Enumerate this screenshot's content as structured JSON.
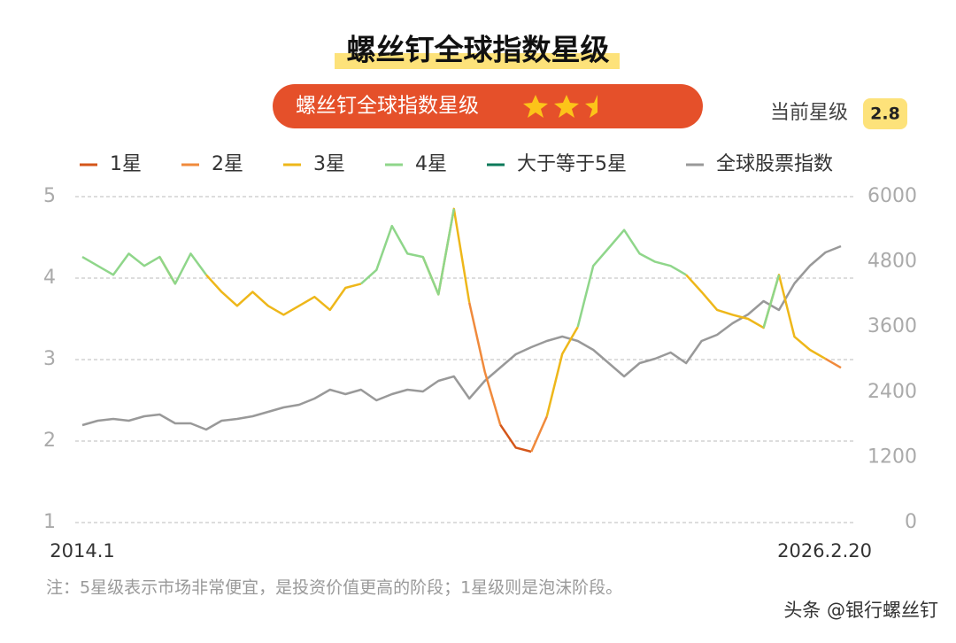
{
  "chart_data": {
    "type": "line",
    "title": "螺丝钉全球指数星级",
    "subtitle": "螺丝钉全球指数星级",
    "rating_label": "当前星级",
    "rating": 2.8,
    "note": "注：5星级表示市场非常便宜，是投资价值更高的阶段；1星级则是泡沫阶段。",
    "watermark": "头条 @银行螺丝钉",
    "categories": [
      "2014.1",
      null,
      null,
      null,
      null,
      null,
      null,
      null,
      null,
      null,
      null,
      null,
      null,
      null,
      null,
      null,
      null,
      null,
      null,
      null,
      null,
      null,
      null,
      null,
      null,
      null,
      null,
      null,
      null,
      null,
      null,
      null,
      null,
      null,
      null,
      null,
      null,
      null,
      null,
      null,
      null,
      null,
      null,
      null,
      null,
      null,
      null,
      null,
      null,
      "2026.2.20"
    ],
    "ylim": [
      1,
      5
    ],
    "yticks": [
      1,
      2,
      3,
      4,
      5
    ],
    "y2lim": [
      0,
      6000
    ],
    "y2ticks": [
      0,
      1200,
      2400,
      3600,
      4800,
      6000
    ],
    "grid": true,
    "series": [
      {
        "name": "1星",
        "color": "#d4561a",
        "values": [
          null,
          null,
          null,
          null,
          null,
          null,
          null,
          null,
          null,
          null,
          null,
          null,
          null,
          null,
          null,
          null,
          null,
          null,
          null,
          null,
          null,
          null,
          null,
          null,
          null,
          null,
          null,
          2.2,
          1.92,
          1.87,
          null,
          null,
          null,
          null,
          null,
          null,
          null,
          null,
          null,
          null,
          null,
          null,
          null,
          null,
          null,
          null,
          null,
          null,
          null,
          null
        ]
      },
      {
        "name": "2星",
        "color": "#f08a3c",
        "values": [
          null,
          null,
          null,
          null,
          null,
          null,
          null,
          null,
          null,
          null,
          null,
          null,
          null,
          null,
          null,
          null,
          null,
          null,
          null,
          null,
          null,
          null,
          null,
          null,
          null,
          3.7,
          2.85,
          2.2,
          null,
          1.87,
          2.3,
          null,
          null,
          null,
          null,
          null,
          null,
          null,
          null,
          null,
          null,
          null,
          null,
          null,
          null,
          null,
          null,
          null,
          3.01,
          2.9
        ]
      },
      {
        "name": "3星",
        "color": "#eeb71a",
        "values": [
          null,
          null,
          null,
          null,
          null,
          4.26,
          3.93,
          null,
          4.04,
          3.83,
          3.66,
          3.83,
          3.66,
          3.55,
          3.66,
          3.77,
          3.61,
          3.88,
          3.93,
          null,
          null,
          null,
          4.26,
          3.8,
          4.85,
          3.7,
          null,
          null,
          null,
          null,
          2.3,
          3.07,
          3.4,
          null,
          null,
          null,
          null,
          null,
          null,
          4.04,
          3.83,
          3.61,
          3.55,
          3.5,
          3.39,
          4.04,
          3.28,
          3.12,
          3.01,
          null
        ]
      },
      {
        "name": "4星",
        "color": "#8fd68a",
        "values": [
          4.26,
          4.15,
          4.04,
          4.3,
          4.15,
          4.26,
          3.93,
          4.3,
          4.04,
          null,
          null,
          null,
          null,
          null,
          null,
          null,
          null,
          null,
          3.93,
          4.1,
          4.64,
          4.3,
          4.26,
          3.8,
          4.85,
          null,
          null,
          null,
          null,
          null,
          null,
          null,
          3.4,
          4.15,
          4.37,
          4.59,
          4.3,
          4.2,
          4.15,
          4.04,
          null,
          null,
          null,
          null,
          3.39,
          4.04,
          null,
          null,
          null,
          null
        ]
      },
      {
        "name": "大于等于5星",
        "color": "#0c7a5a",
        "values": [
          null,
          null,
          null,
          null,
          null,
          null,
          null,
          null,
          null,
          null,
          null,
          null,
          null,
          null,
          null,
          null,
          null,
          null,
          null,
          null,
          null,
          null,
          null,
          null,
          null,
          null,
          null,
          null,
          null,
          null,
          null,
          null,
          null,
          null,
          null,
          null,
          null,
          null,
          null,
          null,
          null,
          null,
          null,
          null,
          null,
          null,
          null,
          null,
          null,
          null
        ]
      },
      {
        "name": "全球股票指数",
        "color": "#999999",
        "axis": "y2",
        "values": [
          1793,
          1875,
          1908,
          1875,
          1957,
          1989,
          1826,
          1826,
          1712,
          1875,
          1908,
          1957,
          2038,
          2120,
          2168,
          2283,
          2446,
          2364,
          2446,
          2250,
          2364,
          2446,
          2413,
          2609,
          2690,
          2283,
          2609,
          2853,
          3098,
          3228,
          3342,
          3424,
          3342,
          3179,
          2935,
          2690,
          2935,
          3016,
          3130,
          2935,
          3342,
          3457,
          3668,
          3832,
          4076,
          3913,
          4402,
          4728,
          4973,
          5087
        ]
      }
    ]
  }
}
